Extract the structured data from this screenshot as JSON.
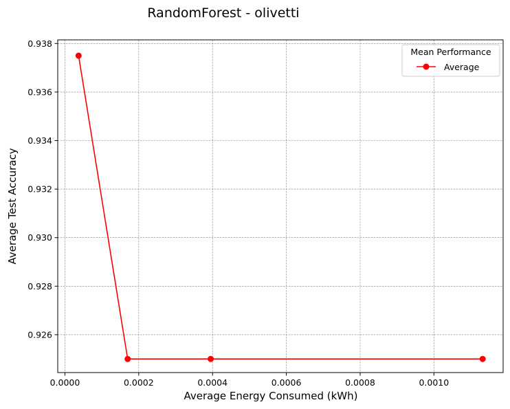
{
  "chart_data": {
    "type": "line",
    "title": "RandomForest - olivetti",
    "xlabel": "Average Energy Consumed (kWh)",
    "ylabel": "Average Test Accuracy",
    "xlim": [
      -1.95e-05,
      0.0011875
    ],
    "ylim": [
      0.92444,
      0.93815
    ],
    "x_ticks": [
      0.0,
      0.0002,
      0.0004,
      0.0006,
      0.0008,
      0.001
    ],
    "x_tick_labels": [
      "0.0000",
      "0.0002",
      "0.0004",
      "0.0006",
      "0.0008",
      "0.0010"
    ],
    "y_ticks": [
      0.926,
      0.928,
      0.93,
      0.932,
      0.934,
      0.936,
      0.938
    ],
    "y_tick_labels": [
      "0.926",
      "0.928",
      "0.930",
      "0.932",
      "0.934",
      "0.936",
      "0.938"
    ],
    "grid": true,
    "legend": {
      "title": "Mean Performance",
      "placement": "top-right"
    },
    "series": [
      {
        "name": "Average",
        "color": "#ff0000",
        "marker": "circle",
        "x": [
          3.7e-05,
          0.00017,
          0.000395,
          0.001132
        ],
        "y": [
          0.9375,
          0.925,
          0.925,
          0.925
        ]
      }
    ]
  }
}
